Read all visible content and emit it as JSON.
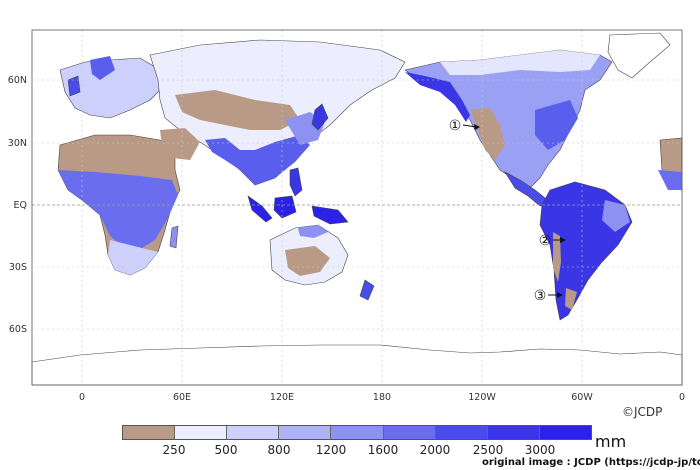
{
  "map": {
    "type": "annual precipitation map",
    "lat_labels": [
      "60N",
      "30N",
      "EQ",
      "30S",
      "60S"
    ],
    "lon_labels": [
      "0",
      "60E",
      "120E",
      "180",
      "120W",
      "60W",
      "0"
    ],
    "markers": [
      {
        "num": "1",
        "glyph": "①"
      },
      {
        "num": "2",
        "glyph": "②"
      },
      {
        "num": "3",
        "glyph": "③"
      }
    ],
    "colors": {
      "dry": "#b89a86",
      "wet_max": "#2a22e8",
      "coast": "#444444",
      "grid": "#c8c8c8",
      "ocean": "#ffffff"
    }
  },
  "legend": {
    "unit": "mm",
    "ticks": [
      "250",
      "500",
      "800",
      "1200",
      "1600",
      "2000",
      "2500",
      "3000"
    ],
    "colors": [
      "#b89a86",
      "#eceefe",
      "#cdd0fa",
      "#aeb2f6",
      "#8d92f2",
      "#6a6eee",
      "#4a4cea",
      "#3a36e6",
      "#2a22e8"
    ]
  },
  "credits": {
    "copyright": "©JCDP",
    "source": "original image : JCDP (https://jcdp-jp/top-jp/)"
  }
}
